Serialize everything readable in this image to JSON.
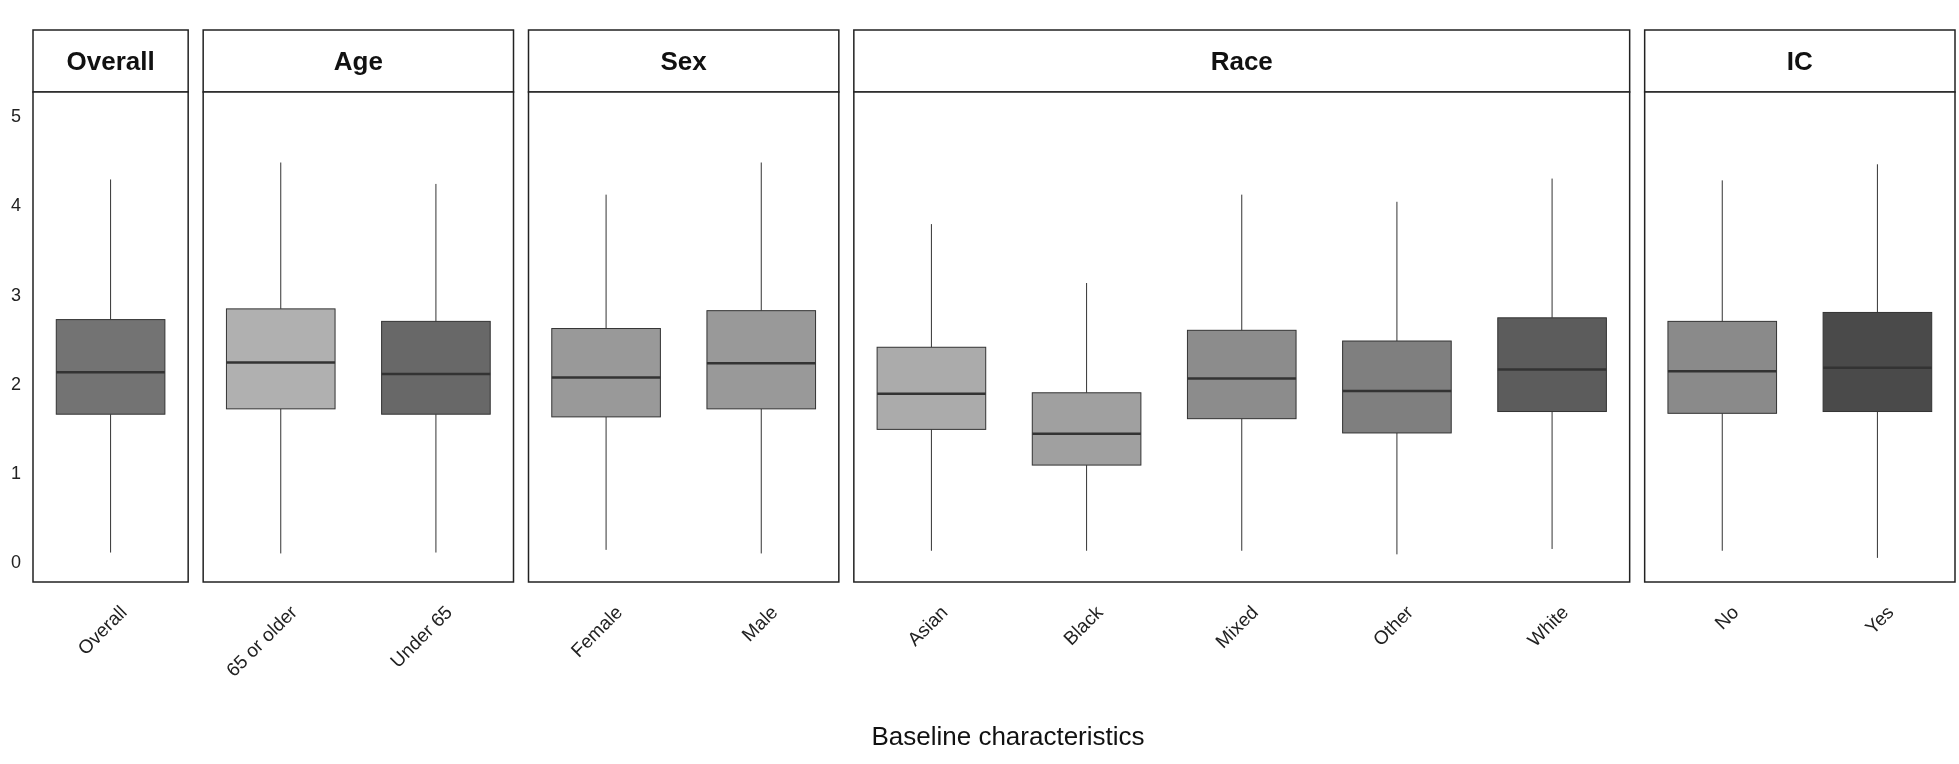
{
  "chart_data": [
    {
      "type": "box",
      "title": "Overall",
      "categories": [
        "Overall"
      ],
      "colors": [
        "#737373"
      ],
      "ylim": [
        -0.22,
        5.27
      ],
      "yticks": [
        0,
        1,
        2,
        3,
        4,
        5
      ],
      "boxes": [
        {
          "low": 0.11,
          "q1": 1.66,
          "median": 2.13,
          "q3": 2.72,
          "high": 4.29
        }
      ]
    },
    {
      "type": "box",
      "title": "Age",
      "categories": [
        "65 or older",
        "Under 65"
      ],
      "colors": [
        "#b0b0b0",
        "#686868"
      ],
      "ylim": [
        -0.22,
        5.27
      ],
      "tick_labels": "x",
      "boxes": [
        {
          "low": 0.1,
          "q1": 1.72,
          "median": 2.24,
          "q3": 2.84,
          "high": 4.48
        },
        {
          "low": 0.11,
          "q1": 1.66,
          "median": 2.11,
          "q3": 2.7,
          "high": 4.24
        }
      ]
    },
    {
      "type": "box",
      "title": "Sex",
      "categories": [
        "Female",
        "Male"
      ],
      "colors": [
        "#999999",
        "#999999"
      ],
      "ylim": [
        -0.22,
        5.27
      ],
      "tick_labels": "x",
      "boxes": [
        {
          "low": 0.14,
          "q1": 1.63,
          "median": 2.07,
          "q3": 2.62,
          "high": 4.12
        },
        {
          "low": 0.1,
          "q1": 1.72,
          "median": 2.23,
          "q3": 2.82,
          "high": 4.48
        }
      ]
    },
    {
      "type": "box",
      "title": "Race",
      "xlabel": "Baseline characteristics",
      "categories": [
        "Asian",
        "Black",
        "Mixed",
        "Other",
        "White"
      ],
      "colors": [
        "#ababab",
        "#a0a0a0",
        "#8c8c8c",
        "#7f7f7f",
        "#5c5c5c"
      ],
      "ylim": [
        -0.22,
        5.27
      ],
      "tick_labels": "x",
      "boxes": [
        {
          "low": 0.13,
          "q1": 1.49,
          "median": 1.89,
          "q3": 2.41,
          "high": 3.79
        },
        {
          "low": 0.13,
          "q1": 1.09,
          "median": 1.44,
          "q3": 1.9,
          "high": 3.13
        },
        {
          "low": 0.13,
          "q1": 1.61,
          "median": 2.06,
          "q3": 2.6,
          "high": 4.12
        },
        {
          "low": 0.09,
          "q1": 1.45,
          "median": 1.92,
          "q3": 2.48,
          "high": 4.04
        },
        {
          "low": 0.15,
          "q1": 1.69,
          "median": 2.16,
          "q3": 2.74,
          "high": 4.3
        }
      ]
    },
    {
      "type": "box",
      "title": "IC",
      "categories": [
        "No",
        "Yes"
      ],
      "colors": [
        "#8a8a8a",
        "#4a4a4a"
      ],
      "ylim": [
        -0.22,
        5.27
      ],
      "tick_labels": "x",
      "boxes": [
        {
          "low": 0.13,
          "q1": 1.67,
          "median": 2.14,
          "q3": 2.7,
          "high": 4.28
        },
        {
          "low": 0.05,
          "q1": 1.69,
          "median": 2.18,
          "q3": 2.8,
          "high": 4.46
        }
      ]
    }
  ]
}
